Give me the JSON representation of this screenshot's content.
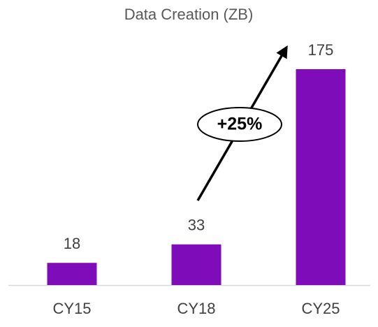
{
  "chart_data": {
    "type": "bar",
    "title": "Data Creation (ZB)",
    "categories": [
      "CY15",
      "CY18",
      "CY25"
    ],
    "values": [
      18,
      33,
      175
    ],
    "color": "#7e0cb8",
    "annotation": "+25%"
  }
}
